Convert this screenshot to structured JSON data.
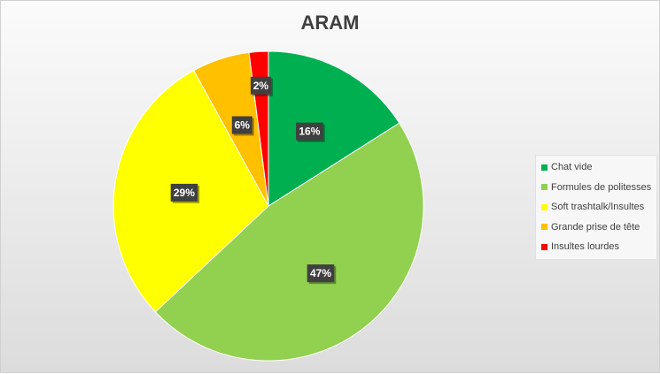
{
  "chart_data": {
    "type": "pie",
    "title": "ARAM",
    "categories": [
      "Chat vide",
      "Formules de politesses",
      "Soft trashtalk/Insultes",
      "Grande prise de tête",
      "Insultes lourdes"
    ],
    "values": [
      16,
      47,
      29,
      6,
      2
    ],
    "labels": [
      "16%",
      "47%",
      "29%",
      "6%",
      "2%"
    ],
    "colors": [
      "#00b050",
      "#92d050",
      "#ffff00",
      "#ffc000",
      "#ff0000"
    ],
    "start_angle_deg": 0,
    "direction": "clockwise",
    "legend_position": "right"
  }
}
